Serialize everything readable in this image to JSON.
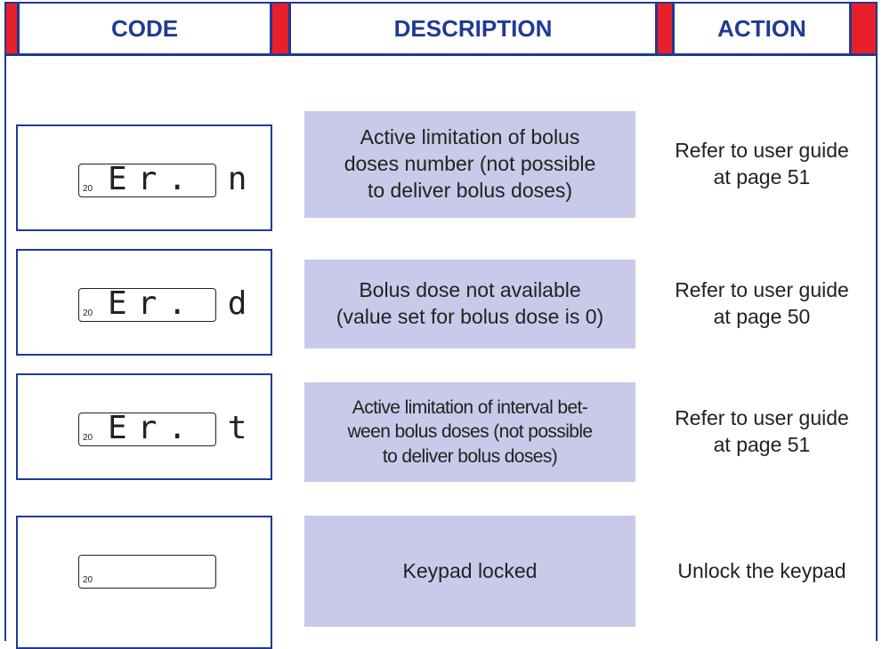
{
  "header": {
    "columns": [
      "CODE",
      "DESCRIPTION",
      "ACTION"
    ]
  },
  "rows": [
    {
      "display_small": "20",
      "display": "Er. n",
      "description": [
        "Active limitation of  bolus",
        "doses number (not possible",
        "to deliver bolus doses)"
      ],
      "action": [
        "Refer to user guide",
        "at page  51"
      ]
    },
    {
      "display_small": "20",
      "display": "Er. d",
      "description": [
        "Bolus dose not available",
        "(value set for bolus dose is 0)"
      ],
      "action": [
        "Refer to user guide",
        "at page  50"
      ]
    },
    {
      "display_small": "20",
      "display": "Er. t",
      "description": [
        "Active limitation of interval bet-",
        "ween bolus doses (not possible",
        "to deliver bolus doses)"
      ],
      "action": [
        "Refer to user guide",
        "at page  51"
      ]
    },
    {
      "display_small": "20",
      "display": null,
      "description": [
        "Keypad  locked"
      ],
      "action": [
        "Unlock the keypad"
      ]
    }
  ]
}
